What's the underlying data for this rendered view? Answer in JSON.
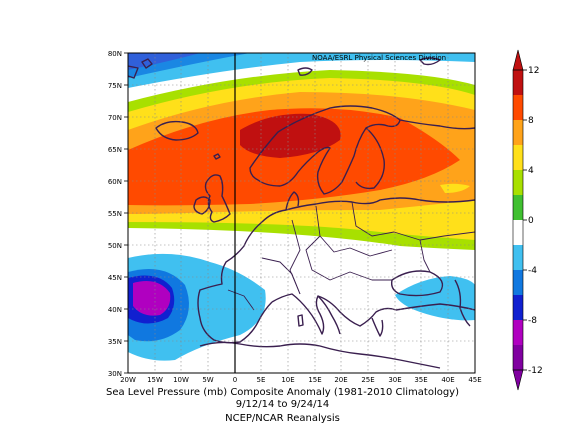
{
  "source": "NOAA/ESRL Physical Sciences Division",
  "caption": {
    "line1": "Sea Level Pressure (mb) Composite Anomaly (1981-2010 Climatology)",
    "line2": "9/12/14  to 9/24/14",
    "line3": "NCEP/NCAR Reanalysis"
  },
  "lat_labels": [
    "80N",
    "75N",
    "70N",
    "65N",
    "60N",
    "55N",
    "50N",
    "45N",
    "40N",
    "35N",
    "30N"
  ],
  "lon_labels": [
    "20W",
    "15W",
    "10W",
    "5W",
    "0",
    "5E",
    "10E",
    "15E",
    "20E",
    "25E",
    "30E",
    "35E",
    "40E",
    "45E"
  ],
  "colorbar": {
    "ticks": [
      "12",
      "8",
      "4",
      "0",
      "-4",
      "-8",
      "-12"
    ],
    "colors": [
      "#c01010",
      "#ff4a00",
      "#ffa31a",
      "#ffe01a",
      "#a8e000",
      "#40c030",
      "#ffffff",
      "#40c0f0",
      "#1078e0",
      "#1020d0",
      "#b000c0",
      "#8000a0"
    ]
  },
  "colors": {
    "land": "#ffffff",
    "coast": "#3a1f4f",
    "background": "#ffffff"
  }
}
